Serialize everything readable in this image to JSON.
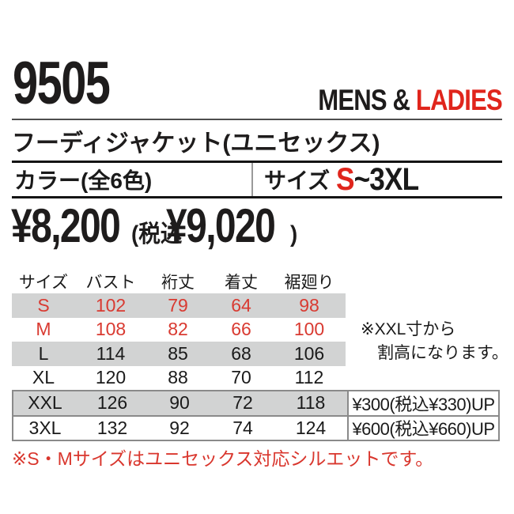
{
  "colors": {
    "accent_red": "#e0251c",
    "table_red": "#d93a31",
    "row_gray": "#d2d3d3",
    "box_border_gray": "#8a8a8a",
    "rule_gray": "#4d4d4d",
    "bar_border_black": "#141414",
    "text_black": "#1a1a1a"
  },
  "header": {
    "product_code": "9505",
    "audience_prefix": "MENS & ",
    "audience_highlight": "LADIES"
  },
  "product_name": "フーディジャケット(ユニセックス)",
  "spec_bar": {
    "color_label": "カラー(全6色)",
    "size_label": "サイズ",
    "size_value_highlight": "S",
    "size_value_rest": "~3XL"
  },
  "price": {
    "base": "¥8,200",
    "tax_open": "(税込",
    "tax_value": "¥9,020",
    "tax_close": ")"
  },
  "size_table": {
    "headers": [
      "サイズ",
      "バスト",
      "裄丈",
      "着丈",
      "裾廻り"
    ],
    "rows": [
      {
        "size": "S",
        "values": [
          "102",
          "79",
          "64",
          "98"
        ],
        "red": true,
        "gray": true,
        "boxed": false,
        "surcharge": null
      },
      {
        "size": "M",
        "values": [
          "108",
          "82",
          "66",
          "100"
        ],
        "red": true,
        "gray": false,
        "boxed": false,
        "surcharge": null
      },
      {
        "size": "L",
        "values": [
          "114",
          "85",
          "68",
          "106"
        ],
        "red": false,
        "gray": true,
        "boxed": false,
        "surcharge": null
      },
      {
        "size": "XL",
        "values": [
          "120",
          "88",
          "70",
          "112"
        ],
        "red": false,
        "gray": false,
        "boxed": false,
        "surcharge": null
      },
      {
        "size": "XXL",
        "values": [
          "126",
          "90",
          "72",
          "118"
        ],
        "red": false,
        "gray": true,
        "boxed": true,
        "surcharge": "¥300(税込¥330)UP"
      },
      {
        "size": "3XL",
        "values": [
          "132",
          "92",
          "74",
          "124"
        ],
        "red": false,
        "gray": false,
        "boxed": true,
        "surcharge": "¥600(税込¥660)UP"
      }
    ]
  },
  "notes": {
    "surcharge_note_line1": "※XXL寸から",
    "surcharge_note_line2": "割高になります。",
    "silhouette_note": "※S・Mサイズはユニセックス対応シルエットです。"
  }
}
